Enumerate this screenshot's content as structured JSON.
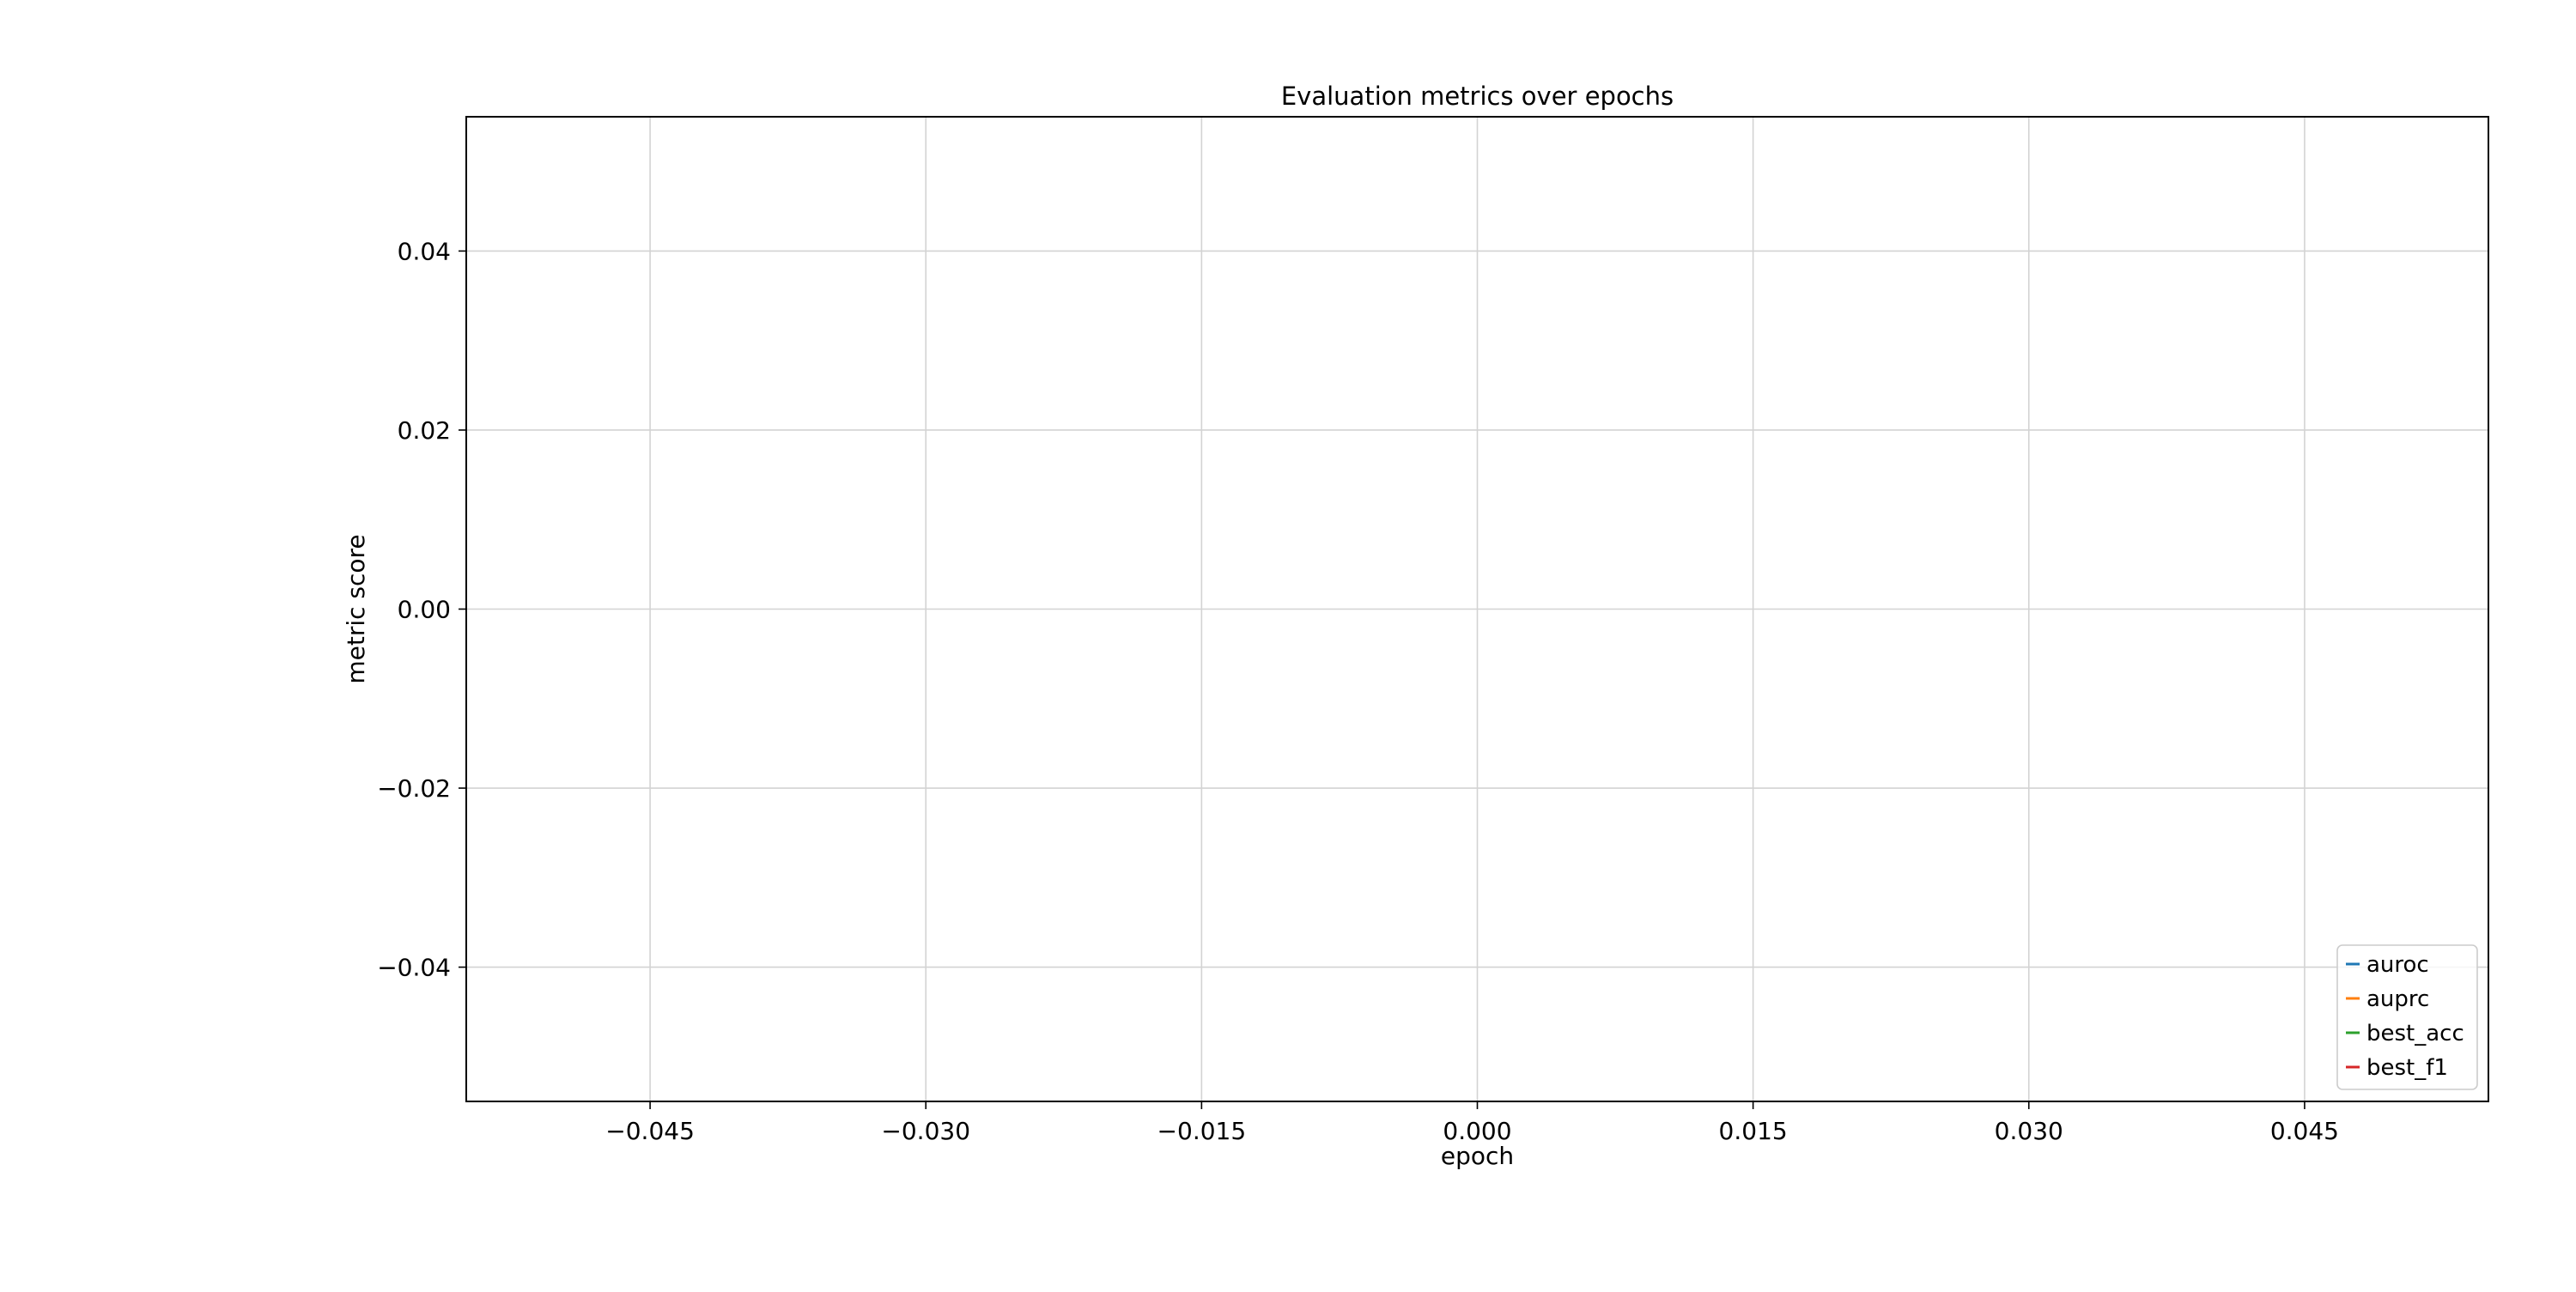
{
  "chart_data": {
    "type": "line",
    "title": "Evaluation metrics over epochs",
    "xlabel": "epoch",
    "ylabel": "metric score",
    "xlim": [
      -0.055,
      0.055
    ],
    "ylim": [
      -0.055,
      0.055
    ],
    "xticks": [
      -0.045,
      -0.03,
      -0.015,
      0.0,
      0.015,
      0.03,
      0.045
    ],
    "xtick_labels": [
      "−0.045",
      "−0.030",
      "−0.015",
      "0.000",
      "0.015",
      "0.030",
      "0.045"
    ],
    "yticks": [
      0.04,
      0.02,
      0.0,
      -0.02,
      -0.04
    ],
    "ytick_labels": [
      "0.04",
      "0.02",
      "0.00",
      "−0.02",
      "−0.04"
    ],
    "grid": true,
    "legend_position": "lower-right",
    "series": [
      {
        "name": "auroc",
        "color": "#1f77b4",
        "x": [],
        "y": []
      },
      {
        "name": "auprc",
        "color": "#ff7f0e",
        "x": [],
        "y": []
      },
      {
        "name": "best_acc",
        "color": "#2ca02c",
        "x": [],
        "y": []
      },
      {
        "name": "best_f1",
        "color": "#d62728",
        "x": [],
        "y": []
      }
    ]
  }
}
